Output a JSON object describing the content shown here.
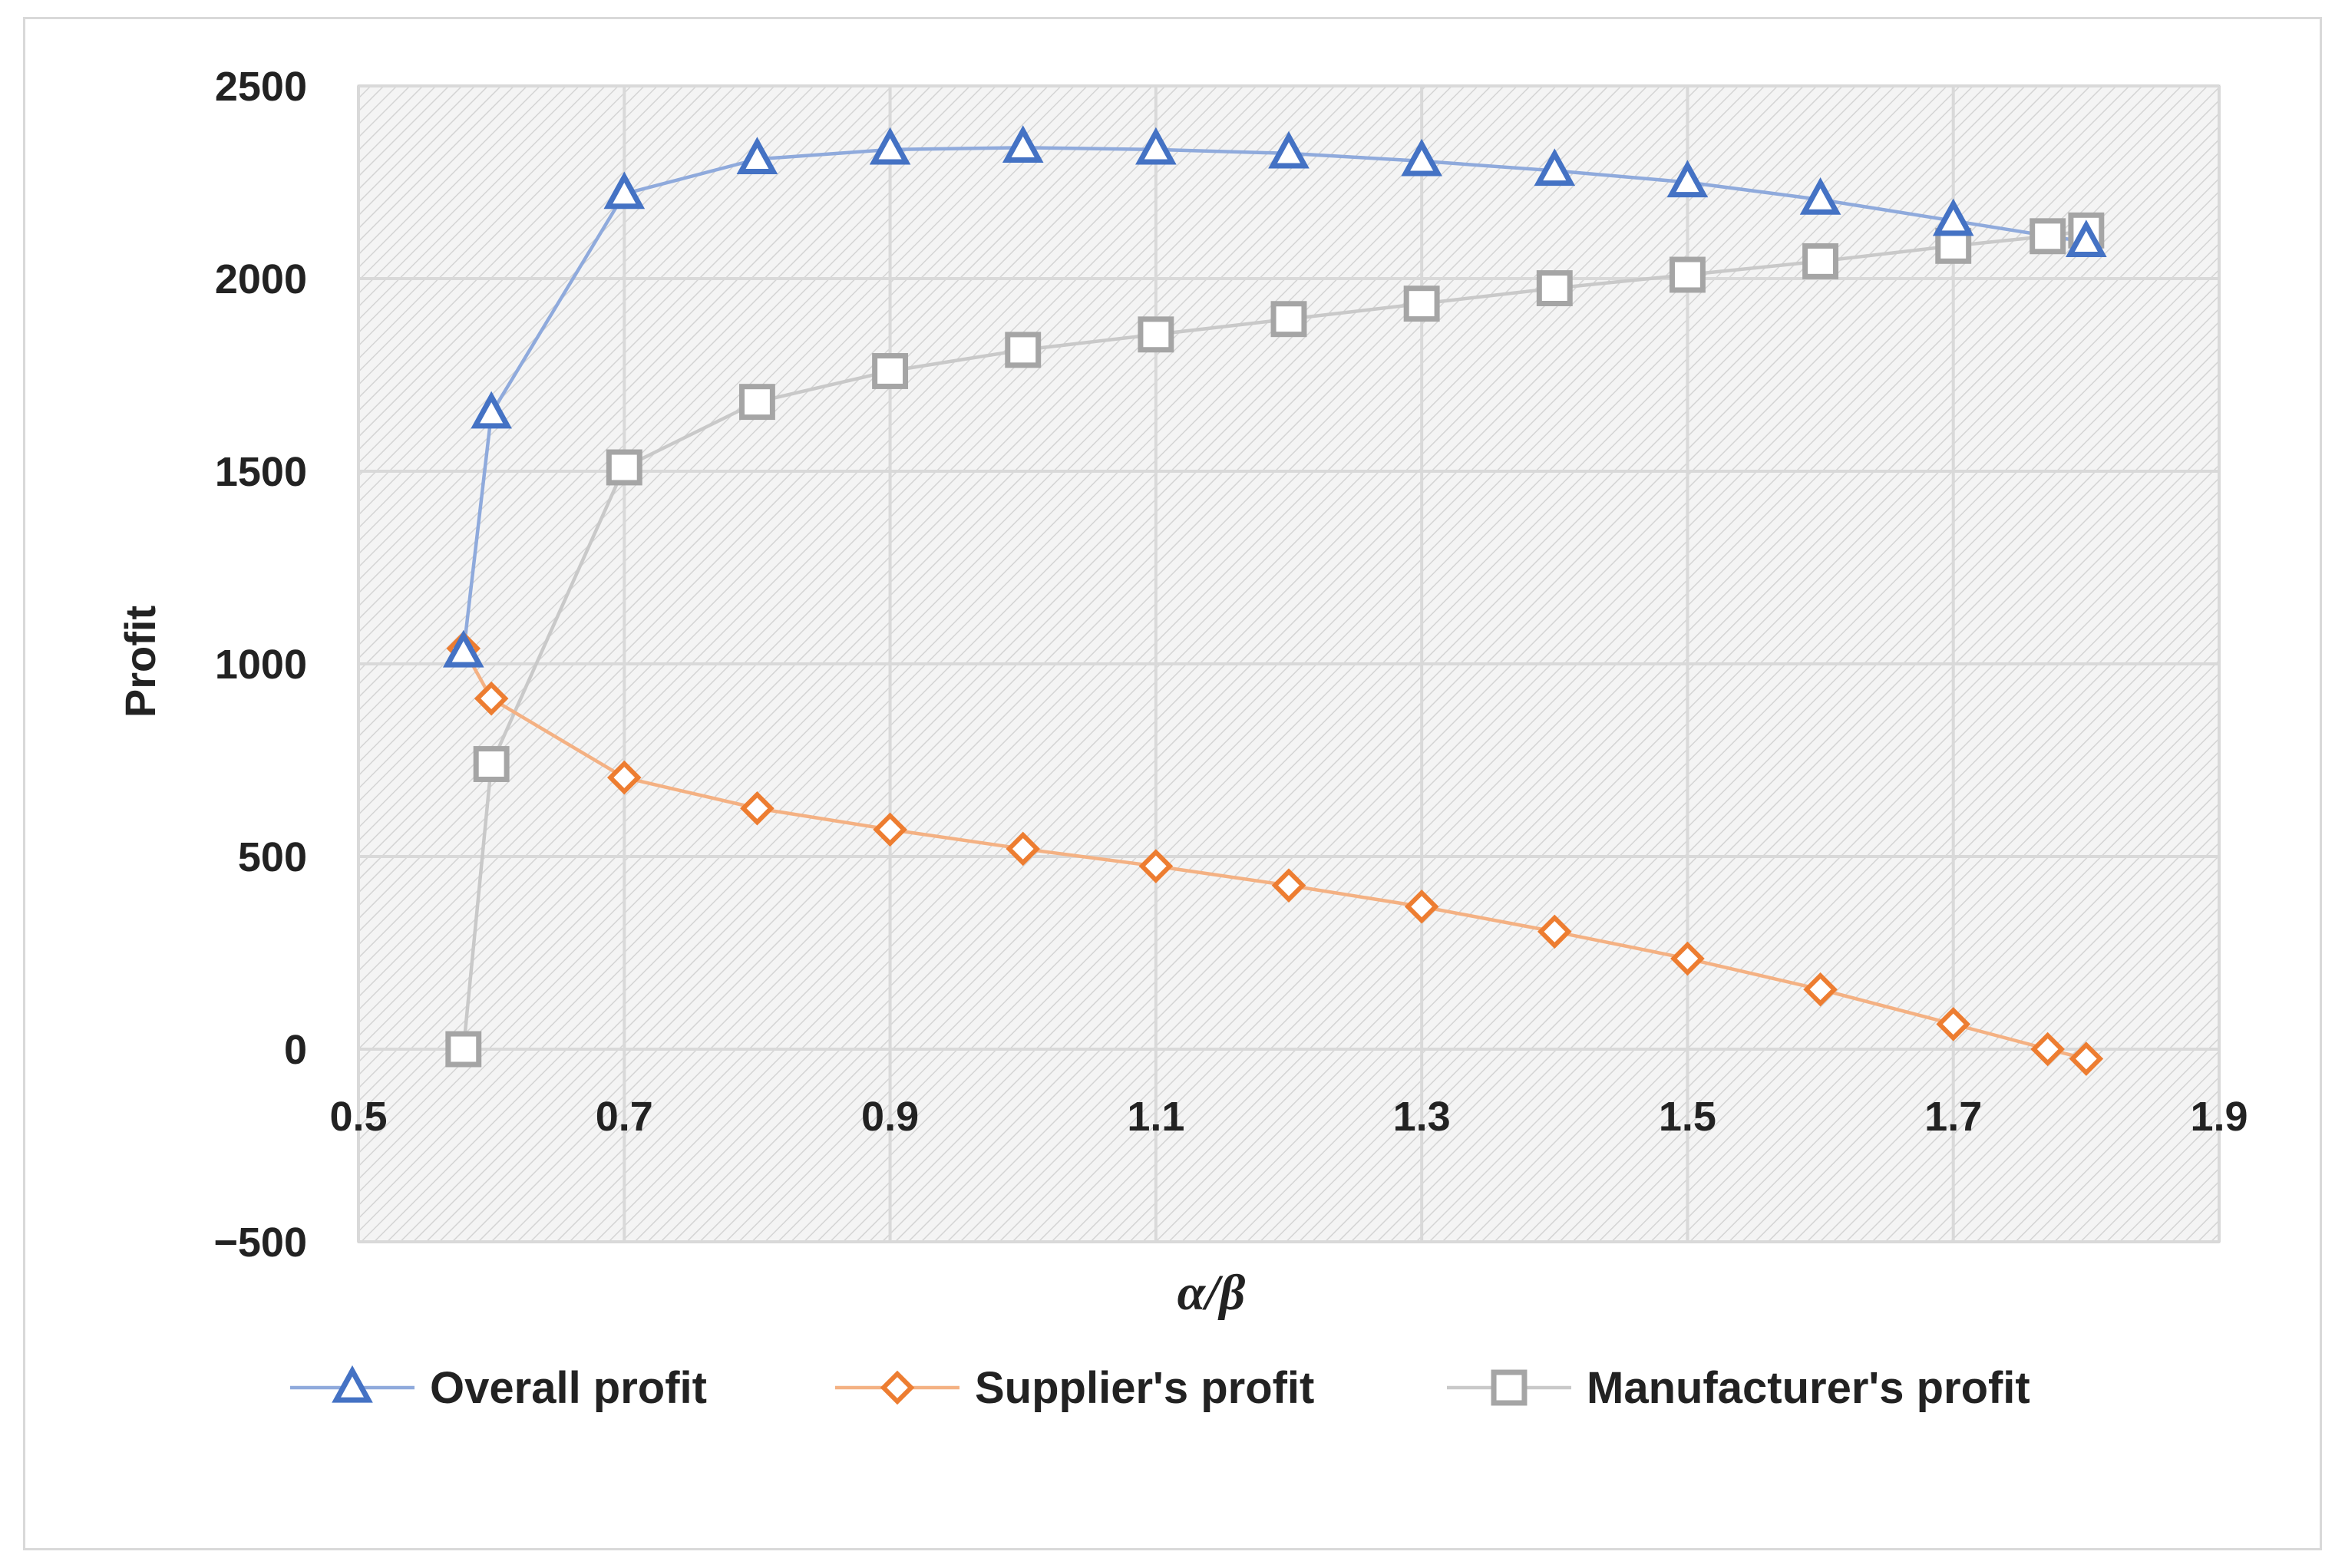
{
  "chart_data": {
    "type": "line",
    "title": "",
    "xlabel": "α/β",
    "ylabel": "Profit",
    "xlim": [
      0.5,
      1.9
    ],
    "ylim": [
      -500,
      2500
    ],
    "xticks": [
      "0.5",
      "0.7",
      "0.9",
      "1.1",
      "1.3",
      "1.5",
      "1.7",
      "1.9"
    ],
    "xtick_values": [
      0.5,
      0.7,
      0.9,
      1.1,
      1.3,
      1.5,
      1.7,
      1.9
    ],
    "yticks": [
      "2500",
      "2000",
      "1500",
      "1000",
      "500",
      "0",
      "−500"
    ],
    "ytick_values": [
      2500,
      2000,
      1500,
      1000,
      500,
      0,
      -500
    ],
    "grid": true,
    "legend_position": "bottom",
    "series": [
      {
        "name": "Overall profit",
        "marker": "triangle",
        "color": "#4472c4",
        "line_color": "#8faadc",
        "x": [
          0.579,
          0.6,
          0.7,
          0.8,
          0.9,
          1.0,
          1.1,
          1.2,
          1.3,
          1.4,
          1.5,
          1.6,
          1.7,
          1.8
        ],
        "y": [
          1030,
          1650,
          2220,
          2310,
          2335,
          2340,
          2335,
          2325,
          2305,
          2280,
          2250,
          2205,
          2150,
          2095
        ]
      },
      {
        "name": "Supplier's profit",
        "marker": "diamond",
        "color": "#ed7d31",
        "line_color": "#f4b183",
        "x": [
          0.579,
          0.6,
          0.7,
          0.8,
          0.9,
          1.0,
          1.1,
          1.2,
          1.3,
          1.4,
          1.5,
          1.6,
          1.7,
          1.771,
          1.8
        ],
        "y": [
          1040,
          910,
          705,
          625,
          570,
          520,
          475,
          425,
          370,
          305,
          235,
          155,
          65,
          0,
          -25
        ]
      },
      {
        "name": "Manufacturer's profit",
        "marker": "square",
        "color": "#a5a5a5",
        "line_color": "#c9c9c9",
        "x": [
          0.579,
          0.6,
          0.7,
          0.8,
          0.9,
          1.0,
          1.1,
          1.2,
          1.3,
          1.4,
          1.5,
          1.6,
          1.7,
          1.771,
          1.8
        ],
        "y": [
          0,
          740,
          1510,
          1680,
          1760,
          1815,
          1855,
          1895,
          1935,
          1975,
          2010,
          2045,
          2085,
          2110,
          2125
        ]
      }
    ]
  }
}
